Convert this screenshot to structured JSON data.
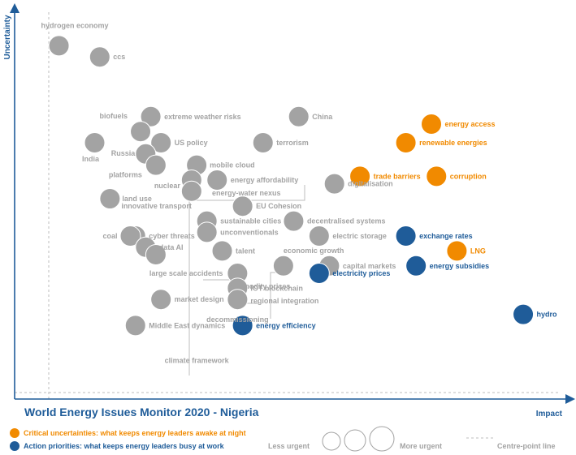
{
  "chart_data": {
    "type": "scatter",
    "title": "World Energy Issues Monitor 2020 - Nigeria",
    "xlabel": "Impact",
    "ylabel": "Uncertainty",
    "xlim": [
      0,
      100
    ],
    "ylim": [
      0,
      100
    ],
    "centre_point": {
      "x": 42,
      "y": 44
    },
    "colors": {
      "grey": "#a3a3a3",
      "orange": "#f18a00",
      "blue": "#1f5c99"
    },
    "points": [
      {
        "label": "hydrogen economy",
        "x": 2,
        "y": 91,
        "group": "grey",
        "size": 1
      },
      {
        "label": "ccs",
        "x": 10,
        "y": 88,
        "group": "grey",
        "size": 1
      },
      {
        "label": "extreme weather risks",
        "x": 20,
        "y": 72,
        "group": "grey",
        "size": 1
      },
      {
        "label": "China",
        "x": 49,
        "y": 72,
        "group": "grey",
        "size": 1
      },
      {
        "label": "energy access",
        "x": 75,
        "y": 70,
        "group": "orange",
        "size": 1
      },
      {
        "label": "biofuels",
        "x": 18,
        "y": 68,
        "group": "grey",
        "size": 1
      },
      {
        "label": "US policy",
        "x": 22,
        "y": 65,
        "group": "grey",
        "size": 1
      },
      {
        "label": "India",
        "x": 9,
        "y": 65,
        "group": "grey",
        "size": 1
      },
      {
        "label": "terrorism",
        "x": 42,
        "y": 65,
        "group": "grey",
        "size": 1
      },
      {
        "label": "renewable energies",
        "x": 70,
        "y": 65,
        "group": "orange",
        "size": 1
      },
      {
        "label": "Russia",
        "x": 19,
        "y": 62,
        "group": "grey",
        "size": 1
      },
      {
        "label": "platforms",
        "x": 21,
        "y": 59,
        "group": "grey",
        "size": 1
      },
      {
        "label": "mobile cloud",
        "x": 29,
        "y": 59,
        "group": "grey",
        "size": 1
      },
      {
        "label": "trade barriers",
        "x": 61,
        "y": 56,
        "group": "orange",
        "size": 1
      },
      {
        "label": "corruption",
        "x": 76,
        "y": 56,
        "group": "orange",
        "size": 1
      },
      {
        "label": "nuclear",
        "x": 28,
        "y": 55,
        "group": "grey",
        "size": 1
      },
      {
        "label": "energy affordability",
        "x": 33,
        "y": 55,
        "group": "grey",
        "size": 1
      },
      {
        "label": "digitalisation",
        "x": 56,
        "y": 54,
        "group": "grey",
        "size": 1
      },
      {
        "label": "innovative transport",
        "x": 28,
        "y": 52,
        "group": "grey",
        "size": 1
      },
      {
        "label": "land use",
        "x": 12,
        "y": 50,
        "group": "grey",
        "size": 1
      },
      {
        "label": "EU Cohesion",
        "x": 38,
        "y": 48,
        "group": "grey",
        "size": 1
      },
      {
        "label": "energy-water nexus",
        "x": 32,
        "y": 47,
        "group": "grey",
        "size": 1
      },
      {
        "label": "decentralised systems",
        "x": 48,
        "y": 44,
        "group": "grey",
        "size": 1
      },
      {
        "label": "sustainable cities",
        "x": 31,
        "y": 44,
        "group": "grey",
        "size": 1
      },
      {
        "label": "exchange rates",
        "x": 70,
        "y": 40,
        "group": "blue",
        "size": 1
      },
      {
        "label": "cyber threats",
        "x": 17,
        "y": 40,
        "group": "grey",
        "size": 1
      },
      {
        "label": "unconventionals",
        "x": 31,
        "y": 41,
        "group": "grey",
        "size": 1
      },
      {
        "label": "coal",
        "x": 16,
        "y": 40,
        "group": "grey",
        "size": 1
      },
      {
        "label": "electric storage",
        "x": 53,
        "y": 40,
        "group": "grey",
        "size": 1
      },
      {
        "label": "data AI",
        "x": 19,
        "y": 37,
        "group": "grey",
        "size": 1
      },
      {
        "label": "talent",
        "x": 34,
        "y": 36,
        "group": "grey",
        "size": 1
      },
      {
        "label": "LNG",
        "x": 80,
        "y": 36,
        "group": "orange",
        "size": 1
      },
      {
        "label": "large scale accidents",
        "x": 21,
        "y": 35,
        "group": "grey",
        "size": 1
      },
      {
        "label": "economic growth",
        "x": 46,
        "y": 32,
        "group": "grey",
        "size": 1
      },
      {
        "label": "capital markets",
        "x": 55,
        "y": 32,
        "group": "grey",
        "size": 1
      },
      {
        "label": "energy subsidies",
        "x": 72,
        "y": 32,
        "group": "blue",
        "size": 1
      },
      {
        "label": "electricity prices",
        "x": 53,
        "y": 30,
        "group": "blue",
        "size": 1
      },
      {
        "label": "commodity prices",
        "x": 37,
        "y": 30,
        "group": "grey",
        "size": 1
      },
      {
        "label": "IOT blockchain",
        "x": 37,
        "y": 26,
        "group": "grey",
        "size": 1
      },
      {
        "label": "regional integration",
        "x": 37,
        "y": 23,
        "group": "grey",
        "size": 1
      },
      {
        "label": "market design",
        "x": 22,
        "y": 23,
        "group": "grey",
        "size": 1
      },
      {
        "label": "decommissioning",
        "x": 36,
        "y": 20,
        "group": "grey",
        "size": 1
      },
      {
        "label": "hydro",
        "x": 93,
        "y": 19,
        "group": "blue",
        "size": 1
      },
      {
        "label": "Middle East dynamics",
        "x": 17,
        "y": 16,
        "group": "grey",
        "size": 1
      },
      {
        "label": "energy efficiency",
        "x": 38,
        "y": 16,
        "group": "blue",
        "size": 1
      },
      {
        "label": "climate framework",
        "x": 29,
        "y": 6,
        "group": "grey",
        "size": 1
      }
    ]
  },
  "legend": {
    "critical": "Critical uncertainties: what keeps energy leaders awake at night",
    "action": "Action priorities: what keeps energy leaders busy at work",
    "less_urgent": "Less urgent",
    "more_urgent": "More urgent",
    "centre_point_line": "Centre-point  line"
  }
}
